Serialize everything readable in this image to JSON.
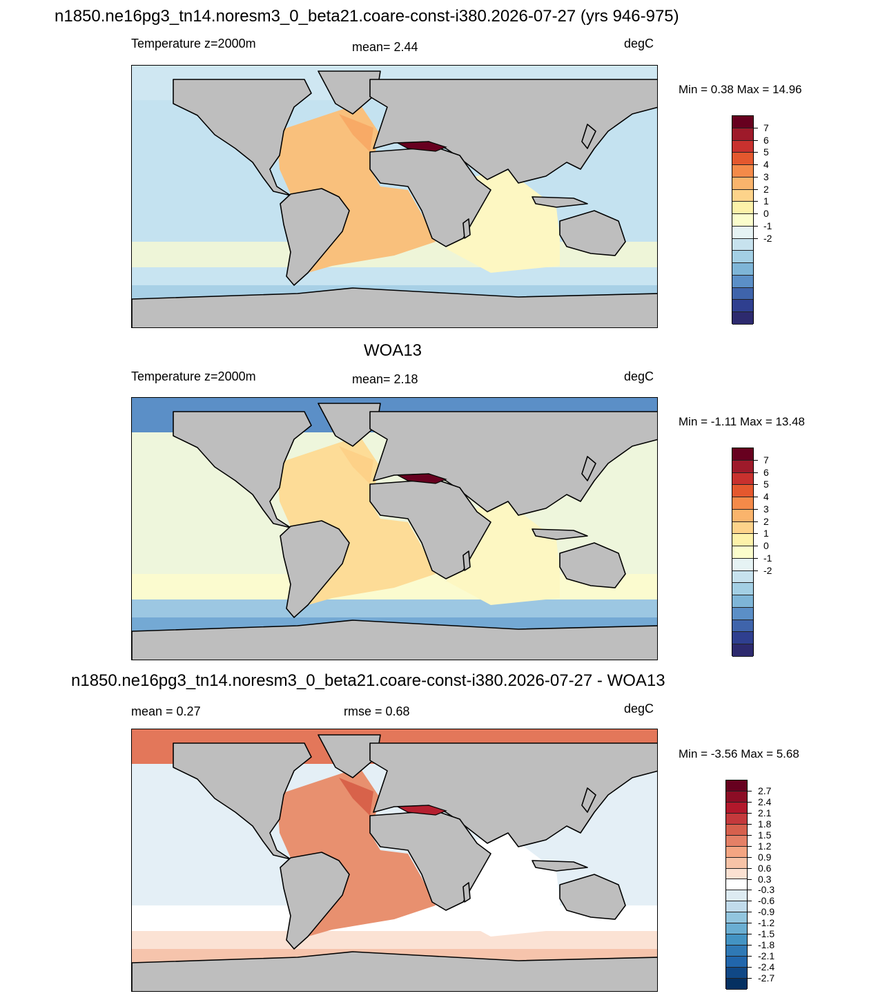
{
  "main_title": "n1850.ne16pg3_tn14.noresm3_0_beta21.coare-const-i380.2026-07-27 (yrs 946-975)",
  "panels": [
    {
      "heading": "",
      "left_label": "Temperature z=2000m",
      "center_label": "mean=   2.44",
      "units": "degC",
      "minmax": "Min =   0.38 Max =  14.96",
      "colors": {
        "northern": "#cfe7f2",
        "mid_pacific": "#c4e2f0",
        "south_band_1": "#eef5d8",
        "south_band_2": "#c8e4f1",
        "south_band_3": "#a8d0e6",
        "atlantic": "#f9c07c",
        "atlantic_north": "#f8aa66",
        "indian": "#fdf7c2",
        "mediterranean": "#67001f",
        "land": "#bebebe"
      }
    },
    {
      "heading": "WOA13",
      "left_label": "Temperature z=2000m",
      "center_label": "mean=   2.18",
      "units": "degC",
      "minmax": "Min =  -1.11 Max =  13.48",
      "colors": {
        "northern": "#5b8fc7",
        "mid_pacific": "#eef6dc",
        "south_band_1": "#fbfbcf",
        "south_band_2": "#9cc7e2",
        "south_band_3": "#74a9d4",
        "atlantic": "#fddc97",
        "atlantic_north": "#fdd188",
        "indian": "#fdf7c2",
        "mediterranean": "#67001f",
        "land": "#bebebe"
      }
    },
    {
      "heading": "n1850.ne16pg3_tn14.noresm3_0_beta21.coare-const-i380.2026-07-27 - WOA13",
      "left_label": "mean =   0.27",
      "center_label": "rmse =   0.68",
      "units": "degC",
      "minmax": "Min =  -3.56 Max =   5.68",
      "colors": {
        "northern": "#e3775a",
        "mid_pacific": "#e4eff6",
        "south_band_1": "#ffffff",
        "south_band_2": "#fbe2d4",
        "south_band_3": "#f6c4ac",
        "atlantic": "#e8906f",
        "atlantic_north": "#d8624a",
        "indian": "#ffffff",
        "mediterranean": "#b52030",
        "land": "#bebebe"
      }
    }
  ],
  "legend_abs": {
    "labels": [
      "7",
      "6",
      "5",
      "4",
      "3",
      "2",
      "1",
      "0",
      "-1",
      "-2"
    ],
    "colors": [
      "#67001f",
      "#9e1a2a",
      "#c8312e",
      "#e4582e",
      "#f48a49",
      "#fab46c",
      "#fdd38a",
      "#fdf2a9",
      "#fbfdcc",
      "#e6f3f4",
      "#c7e2ee",
      "#a3cfe4",
      "#7eb5d7",
      "#5b8fc7",
      "#3f64ab",
      "#2f3f8f",
      "#2d2a6e"
    ]
  },
  "legend_diff": {
    "labels": [
      "2.7",
      "2.4",
      "2.1",
      "1.8",
      "1.5",
      "1.2",
      "0.9",
      "0.6",
      "0.3",
      "-0.3",
      "-0.6",
      "-0.9",
      "-1.2",
      "-1.5",
      "-1.8",
      "-2.1",
      "-2.4",
      "-2.7"
    ],
    "colors": [
      "#67001f",
      "#8c0d25",
      "#b2182b",
      "#c4393c",
      "#d6604d",
      "#e48066",
      "#f4a582",
      "#f7c3a7",
      "#fbe1d2",
      "#ffffff",
      "#ddebf2",
      "#c1dbeb",
      "#92c5de",
      "#6aaed2",
      "#4393c3",
      "#2f79b5",
      "#2166ac",
      "#104886",
      "#053061"
    ]
  }
}
